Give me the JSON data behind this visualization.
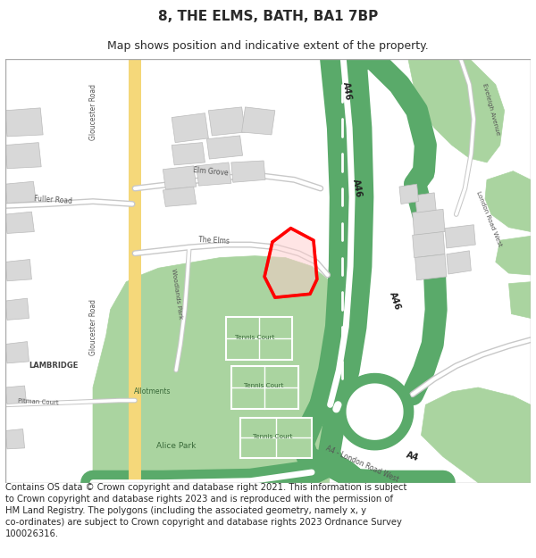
{
  "title": "8, THE ELMS, BATH, BA1 7BP",
  "subtitle": "Map shows position and indicative extent of the property.",
  "footer": "Contains OS data © Crown copyright and database right 2021. This information is subject\nto Crown copyright and database rights 2023 and is reproduced with the permission of\nHM Land Registry. The polygons (including the associated geometry, namely x, y\nco-ordinates) are subject to Crown copyright and database rights 2023 Ordnance Survey\n100026316.",
  "bg_color": "#ffffff",
  "map_bg": "#ffffff",
  "green_light": "#aad4a0",
  "green_dark": "#5aaa6a",
  "road_major_color": "#5aaa6a",
  "building_color": "#d8d8d8",
  "building_edge": "#bbbbbb",
  "yellow_road": "#f5d87a",
  "yellow_road_edge": "#dbb84a",
  "property_color": "#ff0000",
  "property_fill": "#ffcccc",
  "text_dark": "#2a2a2a",
  "text_gray": "#555555",
  "text_green": "#3a6a3a",
  "minor_road_color": "#c8c8c8",
  "title_fontsize": 11,
  "subtitle_fontsize": 9,
  "footer_fontsize": 7.2
}
